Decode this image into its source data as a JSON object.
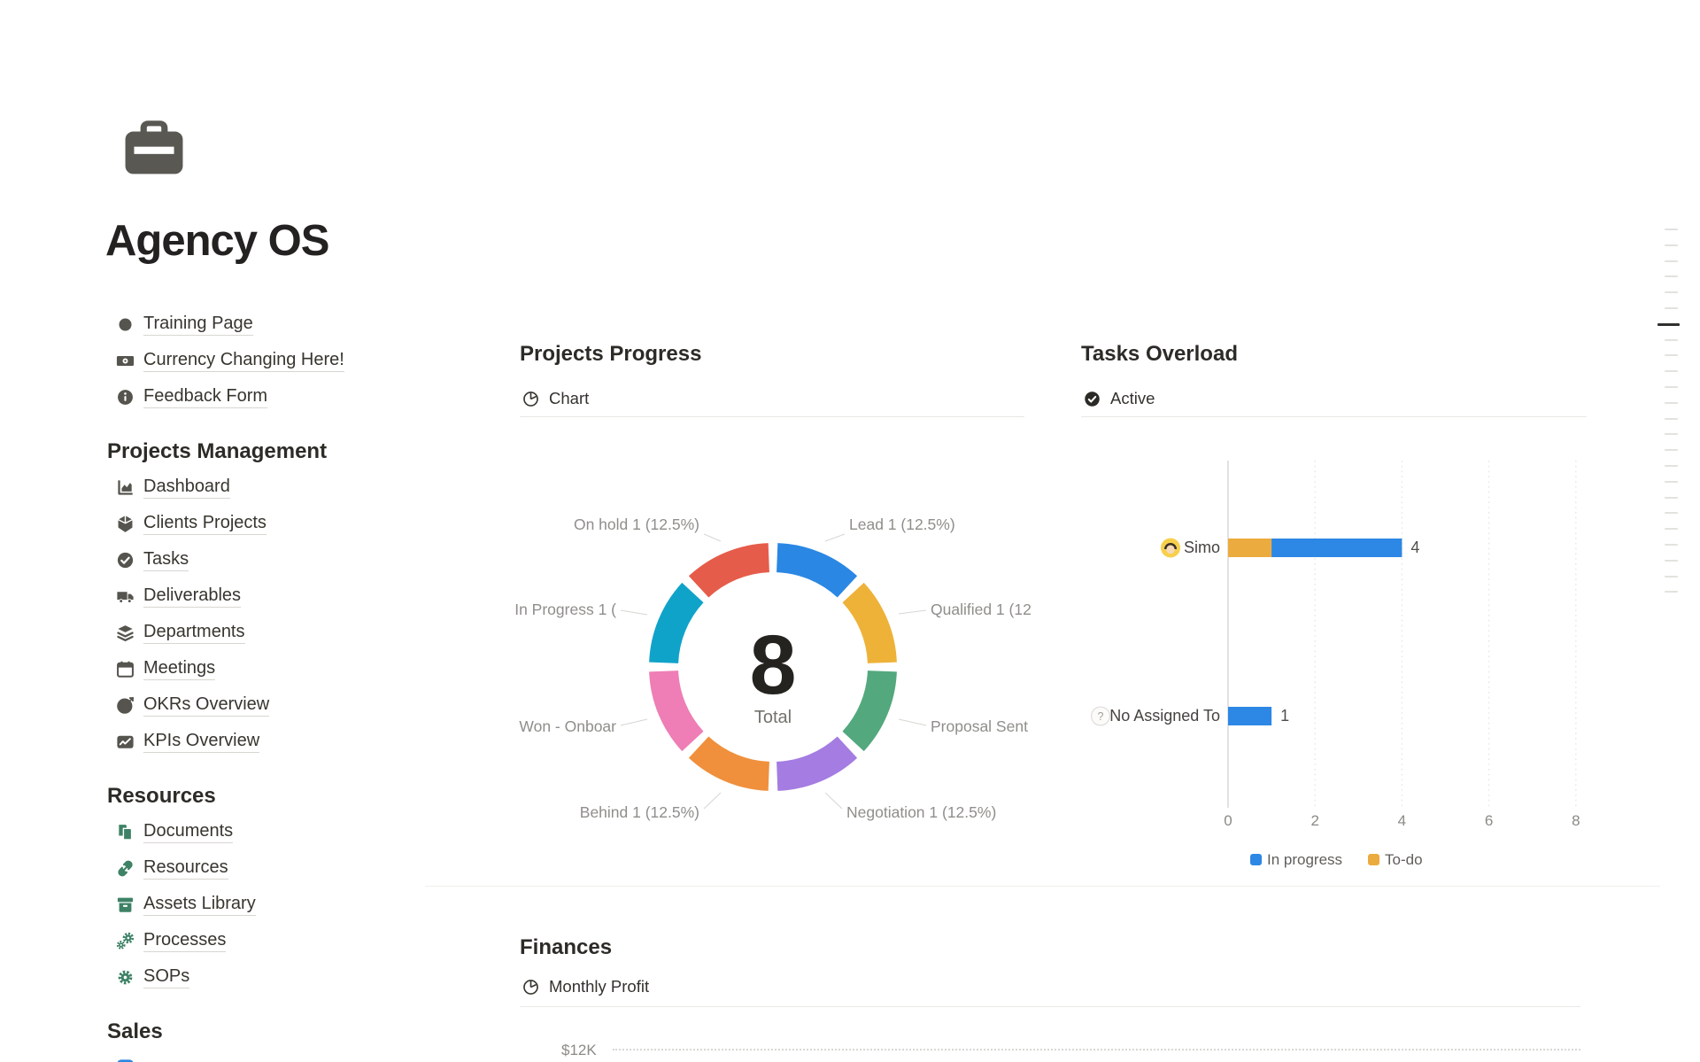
{
  "page": {
    "title": "Agency OS",
    "icon": "briefcase-icon"
  },
  "nav": {
    "links": [
      {
        "icon": "circle-icon",
        "label": "Training Page"
      },
      {
        "icon": "banknote-icon",
        "label": "Currency Changing Here!"
      },
      {
        "icon": "info-icon",
        "label": "Feedback Form"
      }
    ],
    "sections": [
      {
        "title": "Projects Management",
        "items": [
          {
            "icon": "area-chart-icon",
            "label": "Dashboard"
          },
          {
            "icon": "cube-icon",
            "label": "Clients Projects"
          },
          {
            "icon": "check-circle-icon",
            "label": "Tasks"
          },
          {
            "icon": "truck-icon",
            "label": "Deliverables"
          },
          {
            "icon": "layers-icon",
            "label": "Departments"
          },
          {
            "icon": "calendar-icon",
            "label": "Meetings"
          },
          {
            "icon": "target-icon",
            "label": "OKRs Overview"
          },
          {
            "icon": "line-chart-icon",
            "label": "KPIs Overview"
          }
        ]
      },
      {
        "title": "Resources",
        "items": [
          {
            "icon": "documents-icon",
            "label": "Documents",
            "icon_color": "#3e8266"
          },
          {
            "icon": "link-icon",
            "label": "Resources",
            "icon_color": "#3e8266"
          },
          {
            "icon": "archive-icon",
            "label": "Assets Library",
            "icon_color": "#3e8266"
          },
          {
            "icon": "gears-icon",
            "label": "Processes",
            "icon_color": "#3e8266"
          },
          {
            "icon": "gear-icon",
            "label": "SOPs",
            "icon_color": "#3e8266"
          }
        ]
      },
      {
        "title": "Sales",
        "items": [
          {
            "icon": "partial-blue-icon",
            "label": "",
            "icon_color": "#2e87e0"
          }
        ]
      }
    ]
  },
  "projects_progress": {
    "heading": "Projects Progress",
    "view_tab": "Chart"
  },
  "tasks_overload": {
    "heading": "Tasks Overload",
    "view_tab": "Active"
  },
  "finances": {
    "heading": "Finances",
    "view_tab": "Monthly Profit",
    "visible_ytick": "$12K"
  },
  "chart_data": [
    {
      "id": "projects_progress_donut",
      "type": "pie",
      "title": "Projects Progress",
      "total": 8,
      "center_label": "Total",
      "slices": [
        {
          "label": "Lead",
          "value": 1,
          "pct": "12.5%",
          "display": "Lead 1 (12.5%)",
          "color": "#2b87e4"
        },
        {
          "label": "Qualified",
          "value": 1,
          "pct": "12.5%",
          "display": "Qualified 1 (12",
          "color": "#eeb239"
        },
        {
          "label": "Proposal Sent",
          "value": 1,
          "pct": "12.5%",
          "display": "Proposal Sent",
          "color": "#53a87d"
        },
        {
          "label": "Negotiation",
          "value": 1,
          "pct": "12.5%",
          "display": "Negotiation 1 (12.5%)",
          "color": "#a47ce2"
        },
        {
          "label": "Behind",
          "value": 1,
          "pct": "12.5%",
          "display": "Behind 1 (12.5%)",
          "color": "#f0903c"
        },
        {
          "label": "Won - Onboard",
          "value": 1,
          "pct": "12.5%",
          "display": "Won - Onboar",
          "color": "#ee7eb5"
        },
        {
          "label": "In Progress",
          "value": 1,
          "pct": "12.5%",
          "display": "In Progress 1 (",
          "color": "#10a3c9"
        },
        {
          "label": "On hold",
          "value": 1,
          "pct": "12.5%",
          "display": "On hold 1 (12.5%)",
          "color": "#e65c4a"
        }
      ]
    },
    {
      "id": "tasks_overload_bars",
      "type": "bar",
      "orientation": "horizontal",
      "title": "Tasks Overload",
      "categories": [
        "Simo",
        "No Assigned To"
      ],
      "category_avatars": [
        "simo-avatar",
        "unknown-avatar"
      ],
      "series": [
        {
          "name": "To-do",
          "color": "#ecab3e",
          "values": [
            1,
            0
          ]
        },
        {
          "name": "In progress",
          "color": "#2d87e4",
          "values": [
            3,
            1
          ]
        }
      ],
      "bar_totals": [
        4,
        1
      ],
      "xticks": [
        0,
        2,
        4,
        6,
        8
      ],
      "xlim": [
        0,
        8
      ],
      "grid": "dotted-vertical",
      "legend_position": "bottom",
      "legend": [
        {
          "label": "In progress",
          "color": "#2d87e4"
        },
        {
          "label": "To-do",
          "color": "#ecab3e"
        }
      ]
    },
    {
      "id": "finances_monthly_profit",
      "type": "line",
      "title": "Monthly Profit",
      "visible_yticks": [
        "$12K"
      ]
    }
  ],
  "toc_indicator": {
    "count": 24,
    "active_index": 6
  }
}
